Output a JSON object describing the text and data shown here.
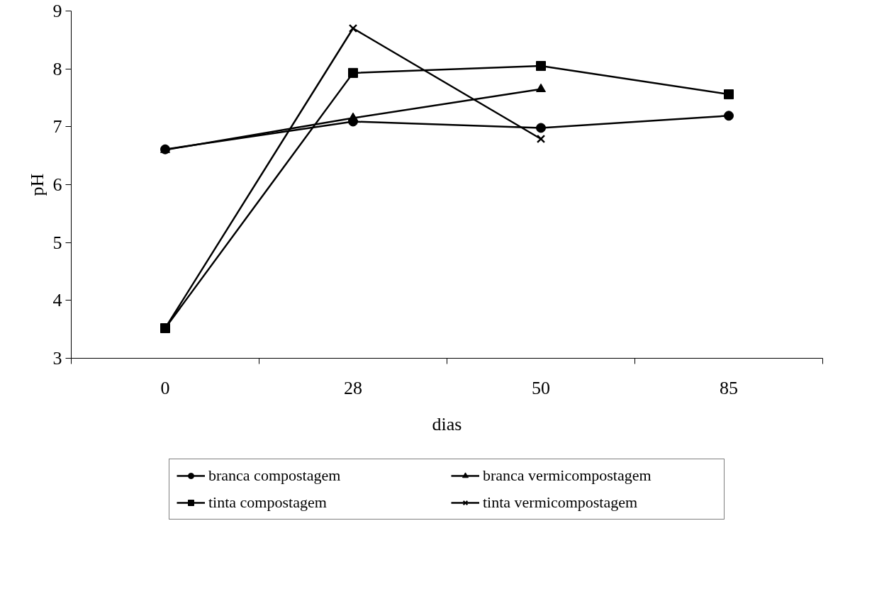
{
  "chart_data": {
    "type": "line",
    "xlabel": "dias",
    "ylabel": "pH",
    "categories": [
      "0",
      "28",
      "50",
      "85"
    ],
    "ylim": [
      3,
      9
    ],
    "yticks": [
      3,
      4,
      5,
      6,
      7,
      8,
      9
    ],
    "grid": false,
    "legend": "bottom",
    "line_style": "solid",
    "series": [
      {
        "name": "branca compostagem",
        "color": "#000000",
        "marker": "circle",
        "values": [
          6.61,
          7.09,
          6.98,
          7.19
        ]
      },
      {
        "name": "tinta compostagem",
        "color": "#000000",
        "marker": "square",
        "values": [
          3.52,
          7.93,
          8.05,
          7.56
        ]
      },
      {
        "name": "branca vermicompostagem",
        "color": "#000000",
        "marker": "triangle",
        "values": [
          6.6,
          7.15,
          7.65,
          null
        ]
      },
      {
        "name": "tinta vermicompostagem",
        "color": "#000000",
        "marker": "cross",
        "values": [
          3.52,
          8.7,
          6.79,
          null
        ]
      }
    ]
  }
}
